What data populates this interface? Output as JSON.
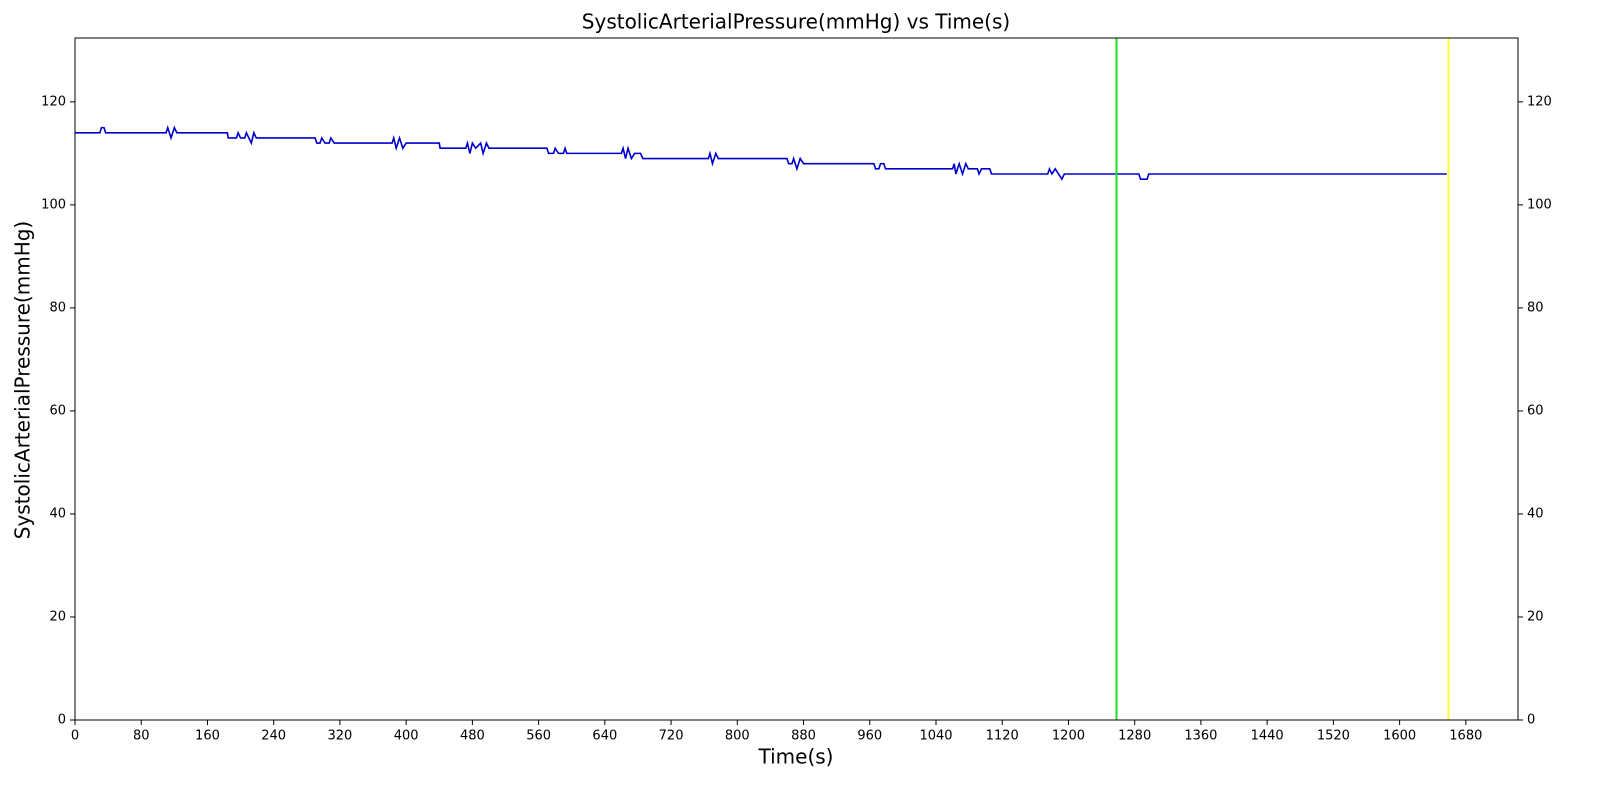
{
  "chart_data": {
    "type": "line",
    "title": "SystolicArterialPressure(mmHg) vs Time(s)",
    "x_label": "Time(s)",
    "y_label": "SystolicArterialPressure(mmHg)",
    "xlim": [
      0,
      1743
    ],
    "ylim": [
      0,
      132.4
    ],
    "xticks": [
      0,
      80,
      160,
      240,
      320,
      400,
      480,
      560,
      640,
      720,
      800,
      880,
      960,
      1040,
      1120,
      1200,
      1280,
      1360,
      1440,
      1520,
      1600,
      1680
    ],
    "yticks": [
      0,
      20,
      40,
      60,
      80,
      100,
      120
    ],
    "right_axis": true,
    "vlines": [
      {
        "x": 1258,
        "color": "#22dd22"
      },
      {
        "x": 1659,
        "color": "#ffff33"
      }
    ],
    "series": [
      {
        "color": "#0000cc",
        "x": [
          0,
          30,
          32,
          35,
          37,
          110,
          112,
          116,
          120,
          123,
          184,
          185,
          195,
          197,
          200,
          205,
          207,
          210,
          213,
          216,
          219,
          290,
          292,
          296,
          298,
          302,
          307,
          309,
          313,
          383,
          385,
          388,
          392,
          396,
          400,
          440,
          441,
          472,
          474,
          477,
          480,
          484,
          490,
          493,
          497,
          500,
          570,
          572,
          578,
          580,
          584,
          590,
          592,
          594,
          660,
          662,
          665,
          668,
          672,
          676,
          683,
          686,
          765,
          767,
          770,
          774,
          777,
          860,
          862,
          866,
          868,
          872,
          876,
          880,
          965,
          967,
          971,
          973,
          977,
          979,
          1060,
          1062,
          1064,
          1068,
          1072,
          1076,
          1079,
          1090,
          1092,
          1095,
          1105,
          1107,
          1175,
          1177,
          1180,
          1184,
          1188,
          1192,
          1195,
          1285,
          1287,
          1295,
          1297,
          1657
        ],
        "values": [
          114,
          114,
          115,
          115,
          114,
          114,
          115,
          113,
          115,
          114,
          114,
          113,
          113,
          114,
          113,
          113,
          114,
          113,
          112,
          114,
          113,
          113,
          112,
          112,
          113,
          112,
          112,
          113,
          112,
          112,
          113,
          111,
          113,
          111,
          112,
          112,
          111,
          111,
          112,
          110,
          112,
          111,
          112,
          110,
          112,
          111,
          111,
          110,
          110,
          111,
          110,
          110,
          111,
          110,
          110,
          111,
          109,
          111,
          109,
          110,
          110,
          109,
          109,
          110,
          108,
          110,
          109,
          109,
          108,
          108,
          109,
          107,
          109,
          108,
          108,
          107,
          107,
          108,
          108,
          107,
          107,
          108,
          106,
          108,
          106,
          108,
          107,
          107,
          106,
          107,
          107,
          106,
          106,
          107,
          106,
          107,
          106,
          105,
          106,
          106,
          105,
          105,
          106,
          106
        ]
      }
    ]
  }
}
